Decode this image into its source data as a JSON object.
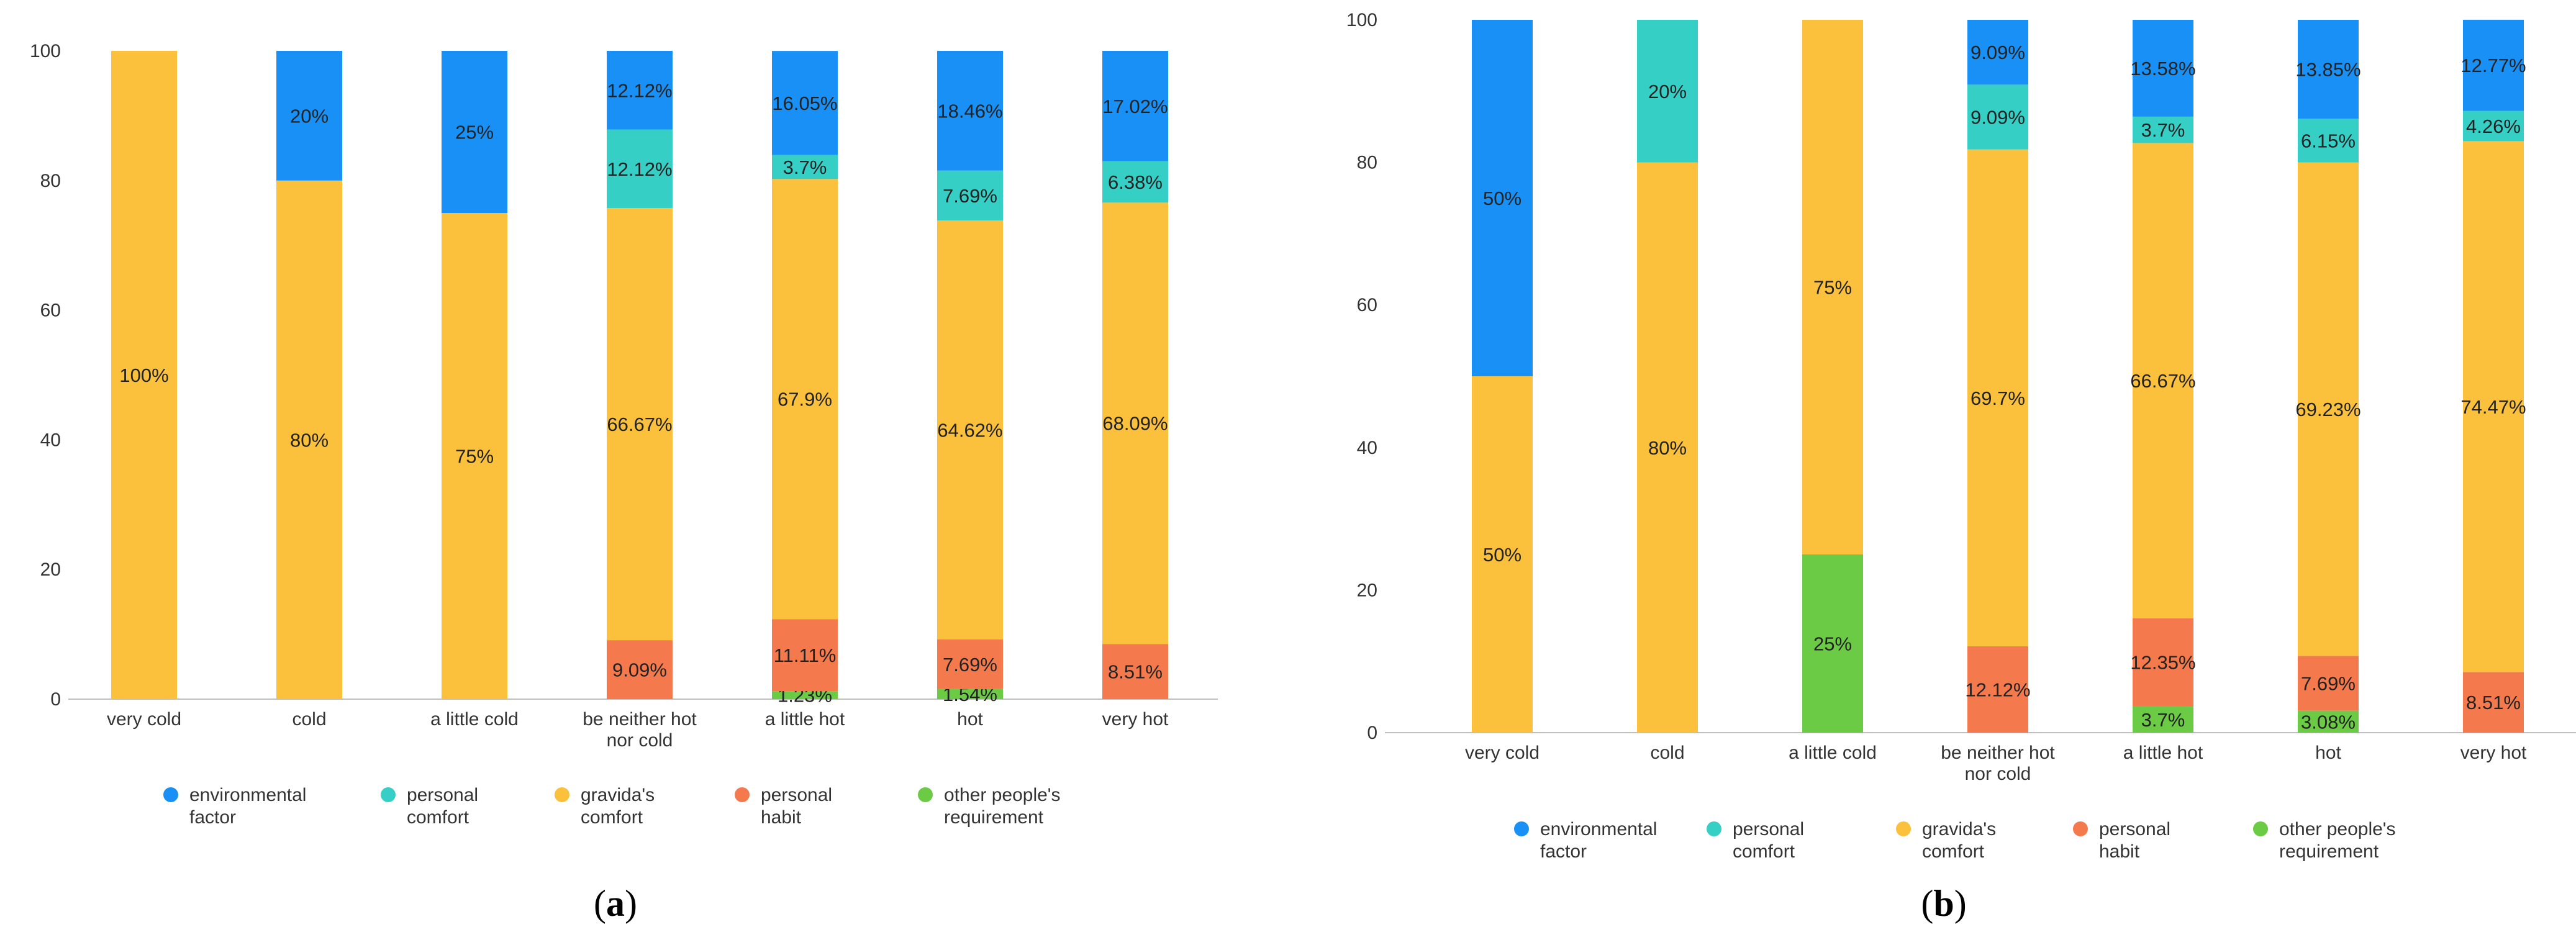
{
  "colors": {
    "environmental factor": "#1890F5",
    "personal comfort": "#36CFC5",
    "gravida's comfort": "#FBC13C",
    "personal habit": "#F47A4E",
    "other people's requirement": "#6CCB45"
  },
  "chart_data": [
    {
      "type": "bar",
      "stacked": true,
      "panel_label": "a",
      "ylim": [
        0,
        100
      ],
      "yticks": [
        0,
        20,
        40,
        60,
        80,
        100
      ],
      "grid": false,
      "legend_position": "bottom",
      "categories": [
        "very cold",
        "cold",
        "a little cold",
        "be neither hot nor cold",
        "a little hot",
        "hot",
        "very hot"
      ],
      "series": [
        {
          "name": "other people's requirement",
          "values": [
            0,
            0,
            0,
            0,
            1.23,
            1.54,
            0
          ],
          "labels": [
            "",
            "",
            "",
            "",
            "1.23%",
            "1.54%",
            ""
          ]
        },
        {
          "name": "personal habit",
          "values": [
            0,
            0,
            0,
            9.09,
            11.11,
            7.69,
            8.51
          ],
          "labels": [
            "",
            "",
            "",
            "9.09%",
            "11.11%",
            "7.69%",
            "8.51%"
          ]
        },
        {
          "name": "gravida's comfort",
          "values": [
            100,
            80,
            75,
            66.67,
            67.9,
            64.62,
            68.09
          ],
          "labels": [
            "100%",
            "80%",
            "75%",
            "66.67%",
            "67.9%",
            "64.62%",
            "68.09%"
          ]
        },
        {
          "name": "personal comfort",
          "values": [
            0,
            0,
            0,
            12.12,
            3.7,
            7.69,
            6.38
          ],
          "labels": [
            "",
            "",
            "",
            "12.12%",
            "3.7%",
            "7.69%",
            "6.38%"
          ]
        },
        {
          "name": "environmental factor",
          "values": [
            0,
            20,
            25,
            12.12,
            16.05,
            18.46,
            17.02
          ],
          "labels": [
            "",
            "20%",
            "25%",
            "12.12%",
            "16.05%",
            "18.46%",
            "17.02%"
          ]
        }
      ]
    },
    {
      "type": "bar",
      "stacked": true,
      "panel_label": "b",
      "ylim": [
        0,
        100
      ],
      "yticks": [
        0,
        20,
        40,
        60,
        80,
        100
      ],
      "grid": false,
      "legend_position": "bottom",
      "categories": [
        "very cold",
        "cold",
        "a little cold",
        "be neither hot nor cold",
        "a little hot",
        "hot",
        "very hot"
      ],
      "series": [
        {
          "name": "other people's requirement",
          "values": [
            0,
            0,
            25,
            0,
            3.7,
            3.08,
            0
          ],
          "labels": [
            "",
            "",
            "25%",
            "",
            "3.7%",
            "3.08%",
            ""
          ]
        },
        {
          "name": "personal habit",
          "values": [
            0,
            0,
            0,
            12.12,
            12.35,
            7.69,
            8.51
          ],
          "labels": [
            "",
            "",
            "",
            "12.12%",
            "12.35%",
            "7.69%",
            "8.51%"
          ]
        },
        {
          "name": "gravida's comfort",
          "values": [
            50,
            80,
            75,
            69.7,
            66.67,
            69.23,
            74.47
          ],
          "labels": [
            "50%",
            "80%",
            "75%",
            "69.7%",
            "66.67%",
            "69.23%",
            "74.47%"
          ]
        },
        {
          "name": "personal comfort",
          "values": [
            0,
            20,
            0,
            9.09,
            3.7,
            6.15,
            4.26
          ],
          "labels": [
            "",
            "20%",
            "",
            "9.09%",
            "3.7%",
            "6.15%",
            "4.26%"
          ]
        },
        {
          "name": "environmental factor",
          "values": [
            50,
            0,
            0,
            9.09,
            13.58,
            13.85,
            12.77
          ],
          "labels": [
            "50%",
            "",
            "",
            "9.09%",
            "13.58%",
            "13.85%",
            "12.77%"
          ]
        }
      ]
    }
  ],
  "legend": [
    {
      "series": "environmental factor",
      "lines": [
        "environmental",
        "factor"
      ]
    },
    {
      "series": "personal comfort",
      "lines": [
        "personal",
        "comfort"
      ]
    },
    {
      "series": "gravida's comfort",
      "lines": [
        "gravida's",
        "comfort"
      ]
    },
    {
      "series": "personal habit",
      "lines": [
        "personal",
        "habit"
      ]
    },
    {
      "series": "other people's requirement",
      "lines": [
        "other people's",
        "requirement"
      ]
    }
  ],
  "category_label_lines": [
    [
      "very cold"
    ],
    [
      "cold"
    ],
    [
      "a little cold"
    ],
    [
      "be neither hot",
      "nor cold"
    ],
    [
      "a little hot"
    ],
    [
      "hot"
    ],
    [
      "very hot"
    ]
  ],
  "panel_captions": [
    {
      "open": "(",
      "letter": "a",
      "close": ")"
    },
    {
      "open": "(",
      "letter": "b",
      "close": ")"
    }
  ]
}
